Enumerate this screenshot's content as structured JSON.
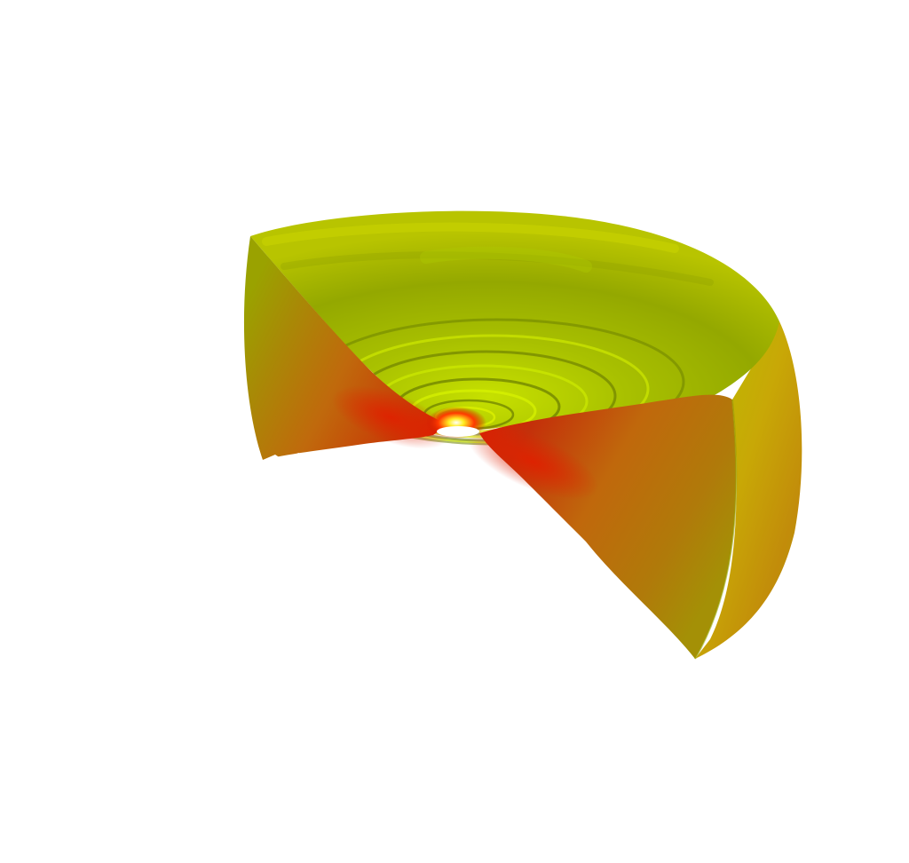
{
  "scene": {
    "subject": "3d-cutaway-volume-render",
    "background_color": "#ffffff",
    "colors": {
      "outer_shell_light": "#b5c400",
      "outer_shell_mid": "#9fb000",
      "outer_shell_dark": "#7a8a00",
      "cut_face_orange": "#c0680a",
      "cut_face_red": "#c42a08",
      "core_hot": "#ffee22",
      "core_glow": "#ff3a00",
      "ring_highlight": "#d4ee00",
      "ring_shadow": "#5e7000"
    }
  }
}
